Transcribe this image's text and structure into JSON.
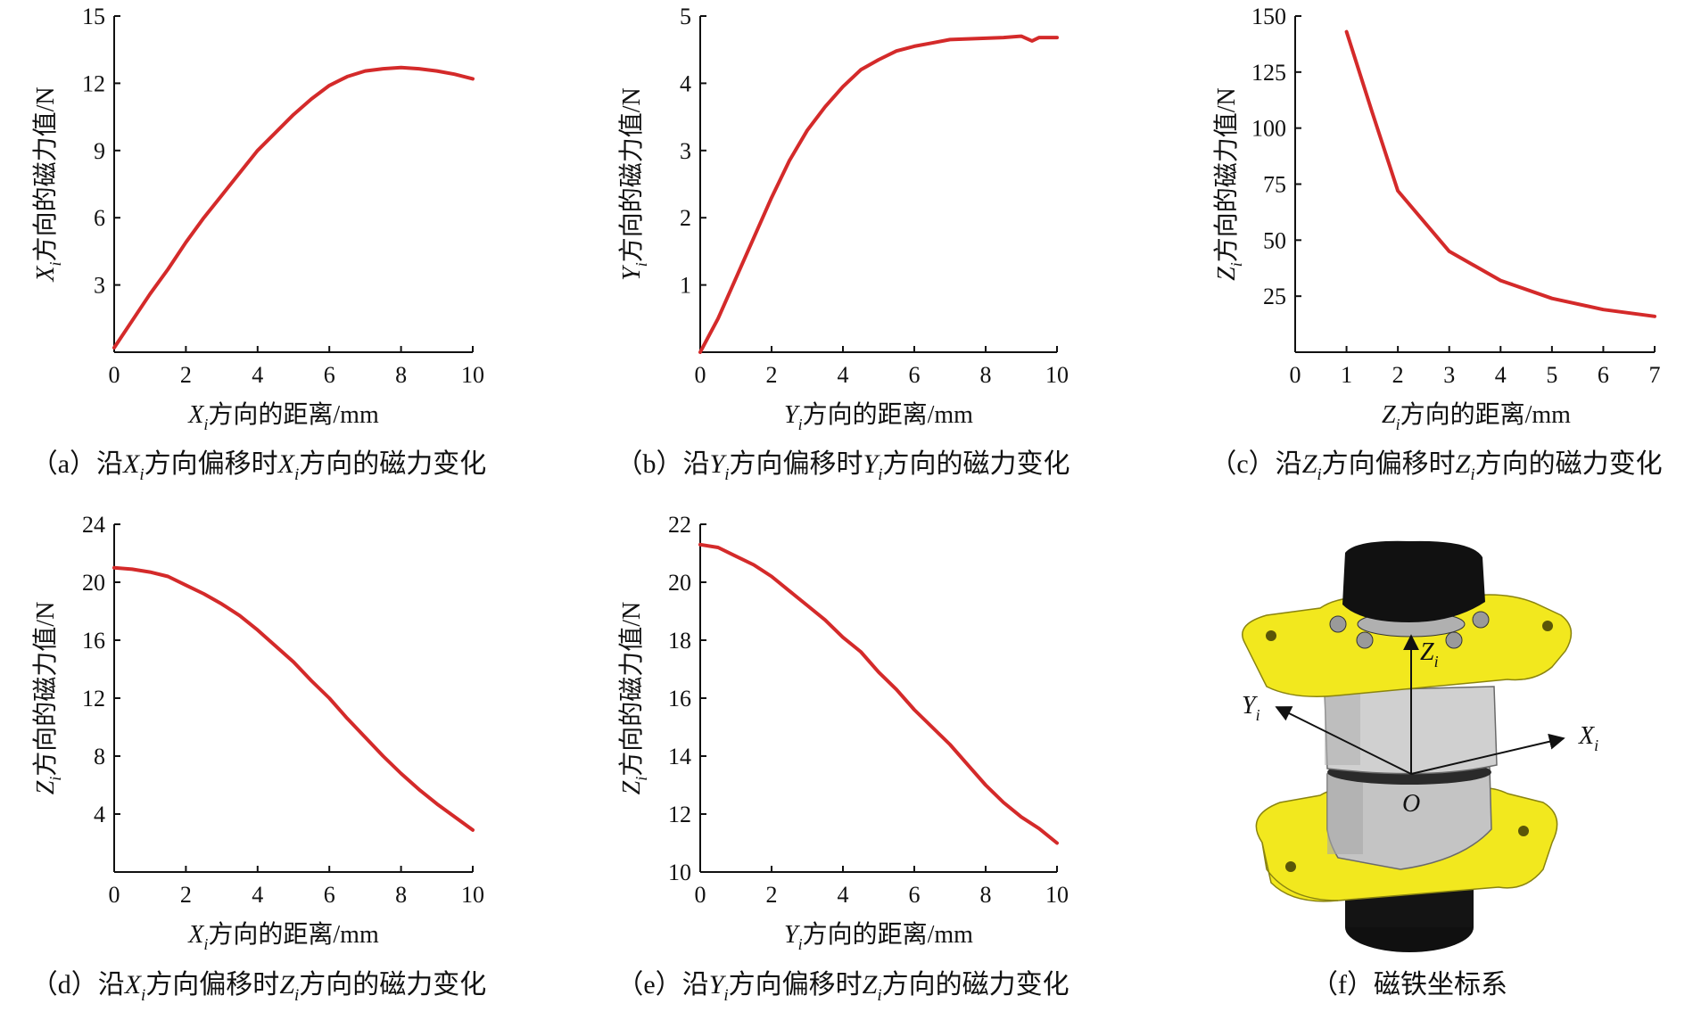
{
  "figure": {
    "caption_f": "（f）磁铁坐标系",
    "diagram_labels": {
      "z": "Z",
      "y": "Y",
      "x": "X",
      "sub": "i",
      "origin": "O"
    }
  },
  "chart_data": [
    {
      "id": "a",
      "type": "line",
      "caption": "（a）沿Xi方向偏移时Xi方向的磁力变化",
      "caption_parts": [
        "（a）沿",
        "X",
        "i",
        "方向偏移时",
        "X",
        "i",
        "方向的磁力变化"
      ],
      "xlabel_parts": [
        "X",
        "i",
        "方向的距离/mm"
      ],
      "ylabel_parts": [
        "X",
        "i",
        "方向的磁力值/N"
      ],
      "xlim": [
        0,
        10
      ],
      "ylim": [
        0,
        15
      ],
      "xticks": [
        0,
        2,
        4,
        6,
        8,
        10
      ],
      "yticks": [
        3,
        6,
        9,
        12,
        15
      ],
      "series": [
        {
          "color": "#d42a2a",
          "x": [
            0,
            0.5,
            1,
            1.5,
            2,
            2.5,
            3,
            3.5,
            4,
            4.5,
            5,
            5.5,
            6,
            6.5,
            7,
            7.5,
            8,
            8.5,
            9,
            9.5,
            10
          ],
          "y": [
            0.2,
            1.4,
            2.6,
            3.7,
            4.9,
            6.0,
            7.0,
            8.0,
            9.0,
            9.8,
            10.6,
            11.3,
            11.9,
            12.3,
            12.55,
            12.65,
            12.7,
            12.65,
            12.55,
            12.4,
            12.2
          ]
        }
      ]
    },
    {
      "id": "b",
      "type": "line",
      "caption": "（b）沿Yi方向偏移时Yi方向的磁力变化",
      "caption_parts": [
        "（b）沿",
        "Y",
        "i",
        "方向偏移时",
        "Y",
        "i",
        "方向的磁力变化"
      ],
      "xlabel_parts": [
        "Y",
        "i",
        "方向的距离/mm"
      ],
      "ylabel_parts": [
        "Y",
        "i",
        "方向的磁力值/N"
      ],
      "xlim": [
        0,
        10
      ],
      "ylim": [
        0,
        5
      ],
      "xticks": [
        0,
        2,
        4,
        6,
        8,
        10
      ],
      "yticks": [
        1,
        2,
        3,
        4,
        5
      ],
      "series": [
        {
          "color": "#d42a2a",
          "x": [
            0,
            0.25,
            0.5,
            1,
            1.5,
            2,
            2.5,
            3,
            3.5,
            4,
            4.5,
            5,
            5.5,
            6,
            6.5,
            7,
            7.5,
            8,
            8.5,
            9,
            9.3,
            9.5,
            10
          ],
          "y": [
            0.0,
            0.25,
            0.5,
            1.1,
            1.7,
            2.3,
            2.85,
            3.3,
            3.65,
            3.95,
            4.2,
            4.35,
            4.48,
            4.55,
            4.6,
            4.65,
            4.66,
            4.67,
            4.68,
            4.7,
            4.63,
            4.68,
            4.68
          ]
        }
      ]
    },
    {
      "id": "c",
      "type": "line",
      "caption": "（c）沿Zi方向偏移时Zi方向的磁力变化",
      "caption_parts": [
        "（c）沿",
        "Z",
        "i",
        "方向偏移时",
        "Z",
        "i",
        "方向的磁力变化"
      ],
      "xlabel_parts": [
        "Z",
        "i",
        "方向的距离/mm"
      ],
      "ylabel_parts": [
        "Z",
        "i",
        "方向的磁力值/N"
      ],
      "xlim": [
        0,
        7
      ],
      "ylim": [
        0,
        150
      ],
      "xticks": [
        0,
        1,
        2,
        3,
        4,
        5,
        6,
        7
      ],
      "yticks": [
        25,
        50,
        75,
        100,
        125,
        150
      ],
      "series": [
        {
          "color": "#d42a2a",
          "x": [
            1,
            1.5,
            2,
            3,
            4,
            5,
            6,
            7
          ],
          "y": [
            143,
            107,
            72,
            45,
            32,
            24,
            19,
            16
          ]
        }
      ]
    },
    {
      "id": "d",
      "type": "line",
      "caption": "（d）沿Xi方向偏移时Zi方向的磁力变化",
      "caption_parts": [
        "（d）沿",
        "X",
        "i",
        "方向偏移时",
        "Z",
        "i",
        "方向的磁力变化"
      ],
      "xlabel_parts": [
        "X",
        "i",
        "方向的距离/mm"
      ],
      "ylabel_parts": [
        "Z",
        "i",
        "方向的磁力值/N"
      ],
      "xlim": [
        0,
        10
      ],
      "ylim": [
        0,
        24
      ],
      "xticks": [
        0,
        2,
        4,
        6,
        8,
        10
      ],
      "yticks": [
        4,
        8,
        12,
        16,
        20,
        24
      ],
      "series": [
        {
          "color": "#d42a2a",
          "x": [
            0,
            0.5,
            1,
            1.5,
            2,
            2.5,
            3,
            3.5,
            4,
            4.5,
            5,
            5.5,
            6,
            6.5,
            7,
            7.5,
            8,
            8.5,
            9,
            9.5,
            10
          ],
          "y": [
            21.0,
            20.9,
            20.7,
            20.4,
            19.8,
            19.2,
            18.5,
            17.7,
            16.7,
            15.6,
            14.5,
            13.2,
            12.0,
            10.6,
            9.3,
            8.0,
            6.8,
            5.7,
            4.7,
            3.8,
            2.9
          ]
        }
      ]
    },
    {
      "id": "e",
      "type": "line",
      "caption": "（e）沿Yi方向偏移时Zi方向的磁力变化",
      "caption_parts": [
        "（e）沿",
        "Y",
        "i",
        "方向偏移时",
        "Z",
        "i",
        "方向的磁力变化"
      ],
      "xlabel_parts": [
        "Y",
        "i",
        "方向的距离/mm"
      ],
      "ylabel_parts": [
        "Z",
        "i",
        "方向的磁力值/N"
      ],
      "xlim": [
        0,
        10
      ],
      "ylim": [
        10,
        22
      ],
      "xticks": [
        0,
        2,
        4,
        6,
        8,
        10
      ],
      "yticks": [
        10,
        12,
        14,
        16,
        18,
        20,
        22
      ],
      "series": [
        {
          "color": "#d42a2a",
          "x": [
            0,
            0.5,
            1,
            1.5,
            2,
            2.5,
            3,
            3.5,
            4,
            4.5,
            5,
            5.5,
            6,
            6.5,
            7,
            7.5,
            8,
            8.5,
            9,
            9.5,
            10
          ],
          "y": [
            21.3,
            21.2,
            20.9,
            20.6,
            20.2,
            19.7,
            19.2,
            18.7,
            18.1,
            17.6,
            16.9,
            16.3,
            15.6,
            15.0,
            14.4,
            13.7,
            13.0,
            12.4,
            11.9,
            11.5,
            11.0
          ]
        }
      ]
    }
  ]
}
